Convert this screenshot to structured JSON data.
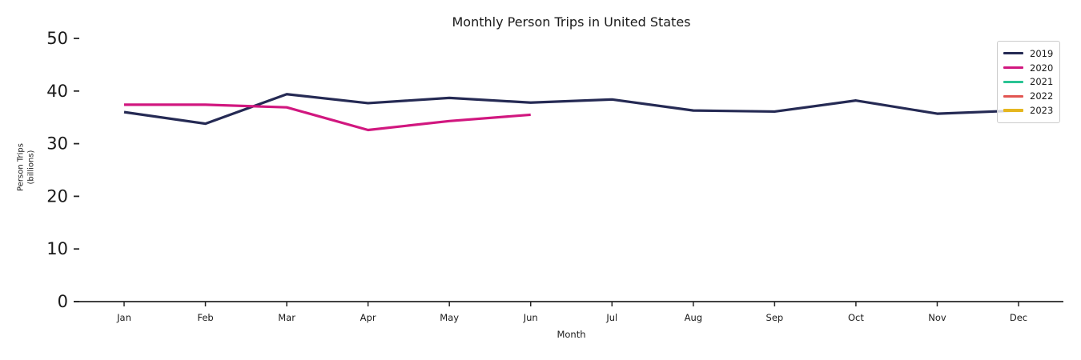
{
  "figure": {
    "title": "Monthly Person Trips in United States",
    "xlabel": "Month",
    "ylabel_line1": "Person Trips",
    "ylabel_line2": "(billions)"
  },
  "chart_data": {
    "type": "line",
    "title": "Monthly Person Trips in United States",
    "xlabel": "Month",
    "ylabel": "Person Trips (billions)",
    "categories": [
      "Jan",
      "Feb",
      "Mar",
      "Apr",
      "May",
      "Jun",
      "Jul",
      "Aug",
      "Sep",
      "Oct",
      "Nov",
      "Dec"
    ],
    "yticks": [
      0,
      10,
      20,
      30,
      40,
      50
    ],
    "ylim": [
      0,
      52
    ],
    "grid": false,
    "legend_position": "upper right",
    "axis_color": "#262626",
    "text_color": "#1a1a1a",
    "background_color": "#ffffff",
    "series": [
      {
        "name": "2019",
        "color": "#252a54",
        "values": [
          36.0,
          33.8,
          39.4,
          37.7,
          38.7,
          37.8,
          38.4,
          36.3,
          36.1,
          38.2,
          35.7,
          36.3
        ]
      },
      {
        "name": "2020",
        "color": "#d1177f",
        "values": [
          37.4,
          37.4,
          36.9,
          32.6,
          34.3,
          35.5
        ]
      },
      {
        "name": "2021",
        "color": "#2bc394",
        "values": []
      },
      {
        "name": "2022",
        "color": "#e25551",
        "values": []
      },
      {
        "name": "2023",
        "color": "#e5b61f",
        "values": []
      }
    ]
  }
}
